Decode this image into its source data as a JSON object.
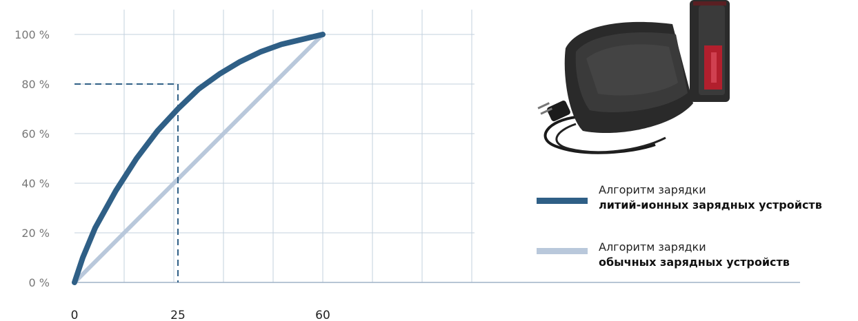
{
  "chart_data": {
    "type": "line",
    "xlabel": "",
    "ylabel": "",
    "x_ticks": [
      0,
      25,
      60
    ],
    "y_ticks": [
      "0 %",
      "20 %",
      "40 %",
      "60 %",
      "80 %",
      "100 %"
    ],
    "xlim": [
      0,
      150
    ],
    "ylim": [
      0,
      100
    ],
    "grid": true,
    "legend_position": "right",
    "series": [
      {
        "name_line1": "Алгоритм зарядки",
        "name_line2": "литий-ионных зарядных устройств",
        "color": "#2f5f86",
        "x": [
          0,
          2,
          5,
          10,
          15,
          20,
          25,
          30,
          35,
          40,
          45,
          50,
          55,
          60
        ],
        "y": [
          0,
          10,
          22,
          37,
          50,
          61,
          70,
          78,
          84,
          89,
          93,
          96,
          98,
          100
        ]
      },
      {
        "name_line1": "Алгоритм зарядки",
        "name_line2": "обычных зарядных устройств",
        "color": "#b9c8db",
        "x": [
          0,
          60
        ],
        "y": [
          0,
          100
        ]
      }
    ],
    "annotation": {
      "x": 25,
      "y": 80,
      "style": "dashed",
      "color": "#2f5f86"
    }
  },
  "image": {
    "icon": "battery-charger-icon"
  }
}
